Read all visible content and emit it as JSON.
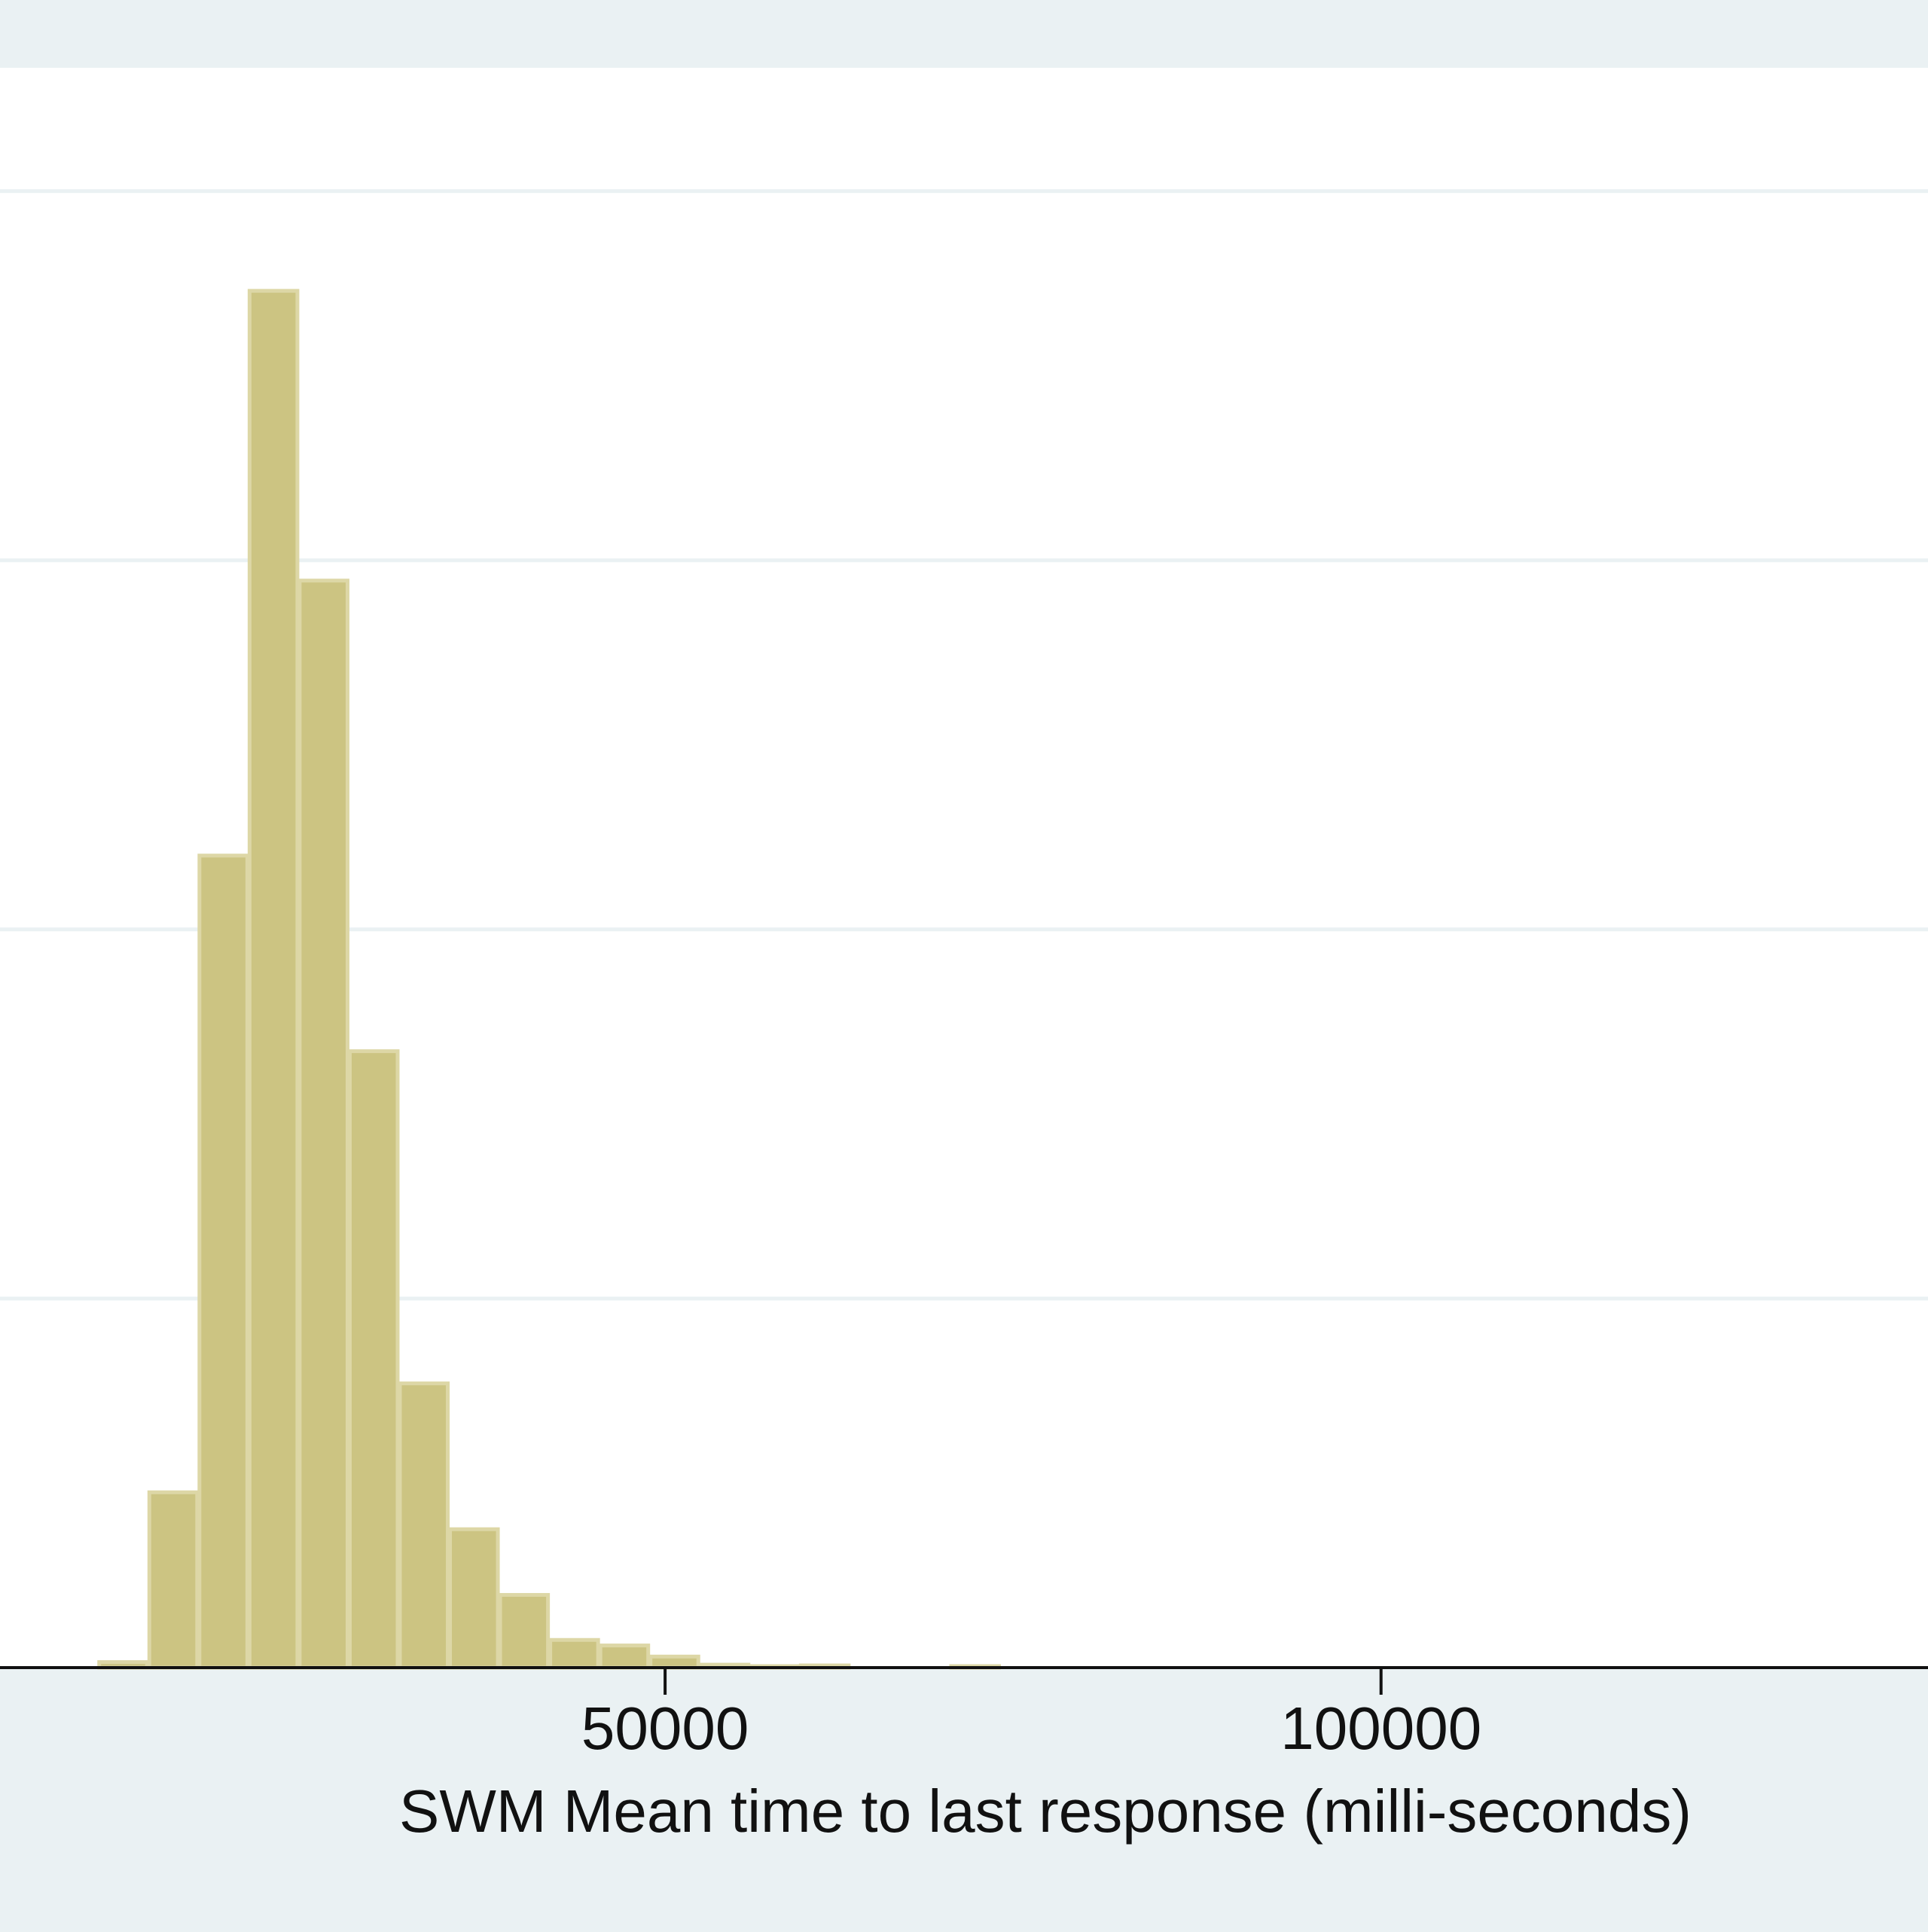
{
  "chart_data": {
    "type": "bar",
    "subtype": "histogram",
    "xlabel": "SWM Mean time to last response (milli-seconds)",
    "ylabel": "",
    "x_ticks": [
      50000,
      100000
    ],
    "x_tick_labels": [
      "50000",
      "100000"
    ],
    "xlim": [
      3550,
      138200
    ],
    "ylim": [
      0,
      4.22
    ],
    "y_gridlines": [
      1,
      2,
      3,
      4
    ],
    "grid": true,
    "bin_width": 3500,
    "bins": [
      {
        "start": 10400,
        "end": 13900,
        "value": 0.015
      },
      {
        "start": 13900,
        "end": 17400,
        "value": 0.475
      },
      {
        "start": 17400,
        "end": 20900,
        "value": 2.2
      },
      {
        "start": 20900,
        "end": 24400,
        "value": 3.73
      },
      {
        "start": 24400,
        "end": 27900,
        "value": 2.945
      },
      {
        "start": 27900,
        "end": 31400,
        "value": 1.67
      },
      {
        "start": 31400,
        "end": 34900,
        "value": 0.77
      },
      {
        "start": 34900,
        "end": 38400,
        "value": 0.375
      },
      {
        "start": 38400,
        "end": 41900,
        "value": 0.197
      },
      {
        "start": 41900,
        "end": 45400,
        "value": 0.075
      },
      {
        "start": 45400,
        "end": 48900,
        "value": 0.06
      },
      {
        "start": 48900,
        "end": 52400,
        "value": 0.03
      },
      {
        "start": 52400,
        "end": 55900,
        "value": 0.008
      },
      {
        "start": 55900,
        "end": 59400,
        "value": 0.003
      },
      {
        "start": 59400,
        "end": 62900,
        "value": 0.006
      },
      {
        "start": 69900,
        "end": 73400,
        "value": 0.002
      }
    ],
    "colors": {
      "bar_fill": "#ccc482",
      "bar_edge": "#ddd7a6",
      "plot_background": "#ffffff",
      "outer_background": "#eaf1f3",
      "gridline": "#eaf1f3",
      "axis": "#111111"
    }
  }
}
